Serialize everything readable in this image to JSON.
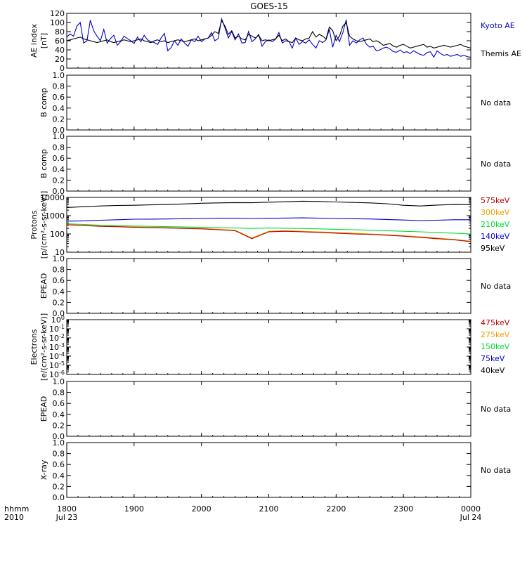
{
  "title": "GOES-15",
  "time_axis": {
    "corner_top": "hhmm",
    "corner_bottom": "2010",
    "ticks": [
      {
        "label": "1800",
        "date": "Jul 23",
        "hour": 18
      },
      {
        "label": "1900",
        "date": "",
        "hour": 19
      },
      {
        "label": "2000",
        "date": "",
        "hour": 20
      },
      {
        "label": "2100",
        "date": "",
        "hour": 21
      },
      {
        "label": "2200",
        "date": "",
        "hour": 22
      },
      {
        "label": "2300",
        "date": "",
        "hour": 23
      },
      {
        "label": "0000",
        "date": "Jul 24",
        "hour": 24
      }
    ],
    "range_hours": [
      18,
      24
    ]
  },
  "colors": {
    "black": "#000000",
    "blue": "#0000cc",
    "green": "#00dd33",
    "orange": "#eea000",
    "red": "#bb0000"
  },
  "no_data_label": "No data",
  "chart_data": [
    {
      "type": "line",
      "ylabel_lines": [
        "AE index",
        "[nT]"
      ],
      "ylim": [
        0,
        120
      ],
      "y_ticks": [
        0,
        20,
        40,
        60,
        80,
        100,
        120
      ],
      "scale": "linear",
      "legend": [
        {
          "text": "Kyoto AE",
          "color": "#0000cc"
        },
        {
          "text": "Themis AE",
          "color": "#000000"
        }
      ],
      "series": [
        {
          "name": "Kyoto AE",
          "color": "#0000cc",
          "x": [
            18.0,
            18.05,
            18.1,
            18.15,
            18.2,
            18.25,
            18.3,
            18.35,
            18.4,
            18.45,
            18.5,
            18.55,
            18.6,
            18.65,
            18.7,
            18.75,
            18.8,
            18.85,
            18.9,
            18.95,
            19.0,
            19.05,
            19.1,
            19.15,
            19.2,
            19.25,
            19.3,
            19.35,
            19.4,
            19.45,
            19.5,
            19.55,
            19.6,
            19.65,
            19.7,
            19.75,
            19.8,
            19.85,
            19.9,
            19.95,
            20.0,
            20.05,
            20.1,
            20.15,
            20.2,
            20.25,
            20.3,
            20.35,
            20.4,
            20.45,
            20.5,
            20.55,
            20.6,
            20.65,
            20.7,
            20.75,
            20.8,
            20.85,
            20.9,
            20.95,
            21.0,
            21.05,
            21.1,
            21.15,
            21.2,
            21.25,
            21.3,
            21.35,
            21.4,
            21.45,
            21.5,
            21.55,
            21.6,
            21.65,
            21.7,
            21.75,
            21.8,
            21.85,
            21.9,
            21.95,
            22.0,
            22.05,
            22.1,
            22.15,
            22.2,
            22.25,
            22.3,
            22.35,
            22.4,
            22.45,
            22.5,
            22.55,
            22.6,
            22.65,
            22.7,
            22.75,
            22.8,
            22.85,
            22.9,
            22.95,
            23.0,
            23.05,
            23.1,
            23.15,
            23.2,
            23.25,
            23.3,
            23.35,
            23.4,
            23.45,
            23.5,
            23.55,
            23.6,
            23.65,
            23.7,
            23.75,
            23.8,
            23.85,
            23.9,
            23.95,
            24.0
          ],
          "y": [
            68,
            75,
            70,
            92,
            100,
            55,
            60,
            105,
            82,
            70,
            60,
            85,
            55,
            65,
            72,
            50,
            58,
            70,
            65,
            60,
            54,
            68,
            58,
            72,
            62,
            58,
            56,
            52,
            66,
            76,
            38,
            45,
            60,
            50,
            64,
            55,
            48,
            62,
            58,
            70,
            58,
            64,
            66,
            78,
            60,
            65,
            108,
            88,
            66,
            80,
            62,
            75,
            55,
            56,
            80,
            58,
            64,
            74,
            48,
            58,
            62,
            58,
            63,
            78,
            55,
            60,
            58,
            44,
            66,
            52,
            58,
            55,
            62,
            52,
            44,
            60,
            56,
            62,
            85,
            46,
            72,
            58,
            78,
            106,
            50,
            60,
            55,
            62,
            66,
            52,
            46,
            48,
            38,
            40,
            44,
            46,
            42,
            36,
            35,
            40,
            34,
            36,
            32,
            38,
            34,
            30,
            28,
            34,
            36,
            24,
            38,
            32,
            28,
            30,
            26,
            28,
            30,
            26,
            28,
            25,
            24
          ]
        },
        {
          "name": "Themis AE",
          "color": "#000000",
          "x": [
            18.0,
            18.05,
            18.1,
            18.15,
            18.2,
            18.25,
            18.3,
            18.35,
            18.4,
            18.45,
            18.5,
            18.55,
            18.6,
            18.65,
            18.7,
            18.75,
            18.8,
            18.85,
            18.9,
            18.95,
            19.0,
            19.05,
            19.1,
            19.15,
            19.2,
            19.25,
            19.3,
            19.35,
            19.4,
            19.45,
            19.5,
            19.55,
            19.6,
            19.65,
            19.7,
            19.75,
            19.8,
            19.85,
            19.9,
            19.95,
            20.0,
            20.05,
            20.1,
            20.15,
            20.2,
            20.25,
            20.3,
            20.35,
            20.4,
            20.45,
            20.5,
            20.55,
            20.6,
            20.65,
            20.7,
            20.75,
            20.8,
            20.85,
            20.9,
            20.95,
            21.0,
            21.05,
            21.1,
            21.15,
            21.2,
            21.25,
            21.3,
            21.35,
            21.4,
            21.45,
            21.5,
            21.55,
            21.6,
            21.65,
            21.7,
            21.75,
            21.8,
            21.85,
            21.9,
            21.95,
            22.0,
            22.05,
            22.1,
            22.15,
            22.2,
            22.25,
            22.3,
            22.35,
            22.4,
            22.45,
            22.5,
            22.55,
            22.6,
            22.65,
            22.7,
            22.75,
            22.8,
            22.85,
            22.9,
            22.95,
            23.0,
            23.05,
            23.1,
            23.15,
            23.2,
            23.25,
            23.3,
            23.35,
            23.4,
            23.45,
            23.5,
            23.55,
            23.6,
            23.65,
            23.7,
            23.75,
            23.8,
            23.85,
            23.9,
            23.95,
            24.0
          ],
          "y": [
            60,
            62,
            64,
            66,
            68,
            64,
            62,
            60,
            58,
            56,
            58,
            60,
            62,
            58,
            56,
            58,
            60,
            62,
            60,
            58,
            60,
            62,
            64,
            60,
            58,
            56,
            60,
            62,
            58,
            60,
            56,
            58,
            60,
            62,
            60,
            58,
            60,
            62,
            64,
            60,
            62,
            64,
            66,
            72,
            80,
            76,
            104,
            92,
            74,
            82,
            66,
            70,
            64,
            62,
            74,
            70,
            66,
            72,
            60,
            62,
            60,
            62,
            64,
            72,
            60,
            64,
            58,
            56,
            66,
            62,
            60,
            64,
            66,
            80,
            68,
            74,
            70,
            64,
            90,
            82,
            60,
            70,
            92,
            100,
            70,
            64,
            60,
            58,
            60,
            62,
            64,
            58,
            60,
            56,
            50,
            52,
            54,
            48,
            46,
            50,
            52,
            48,
            44,
            46,
            48,
            50,
            52,
            46,
            48,
            44,
            46,
            48,
            50,
            48,
            46,
            48,
            50,
            52,
            48,
            46,
            44
          ]
        }
      ]
    },
    {
      "type": "line",
      "ylabel_lines": [
        "B comp"
      ],
      "ylim": [
        0,
        1
      ],
      "y_ticks": [
        0,
        0.2,
        0.4,
        0.6,
        0.8,
        1.0
      ],
      "y_tick_labels": [
        "0.0",
        "0.2",
        "0.4",
        "0.6",
        "0.8",
        "1.0"
      ],
      "scale": "linear",
      "note": "No data",
      "series": []
    },
    {
      "type": "line",
      "ylabel_lines": [
        "B comp"
      ],
      "ylim": [
        0,
        1
      ],
      "y_ticks": [
        0,
        0.2,
        0.4,
        0.6,
        0.8,
        1.0
      ],
      "y_tick_labels": [
        "0.0",
        "0.2",
        "0.4",
        "0.6",
        "0.8",
        "1.0"
      ],
      "scale": "linear",
      "note": "No data",
      "series": []
    },
    {
      "type": "line",
      "ylabel_lines": [
        "Protons",
        "[p/(cm²-s-sr-keV)]"
      ],
      "ylim": [
        10,
        10000
      ],
      "y_ticks": [
        10,
        100,
        1000,
        10000
      ],
      "y_tick_labels": [
        "10",
        "100",
        "1000",
        "10000"
      ],
      "scale": "log",
      "legend": [
        {
          "text": "575keV",
          "color": "#bb0000"
        },
        {
          "text": "300keV",
          "color": "#eea000"
        },
        {
          "text": "210keV",
          "color": "#00dd33"
        },
        {
          "text": "140keV",
          "color": "#0000cc"
        },
        {
          "text": "95keV",
          "color": "#000000"
        }
      ],
      "series": [
        {
          "name": "95keV",
          "color": "#000000",
          "x": [
            18.0,
            18.25,
            18.5,
            18.75,
            19.0,
            19.25,
            19.5,
            19.75,
            20.0,
            20.25,
            20.5,
            20.75,
            21.0,
            21.25,
            21.5,
            21.75,
            22.0,
            22.25,
            22.5,
            22.75,
            23.0,
            23.25,
            23.5,
            23.75,
            24.0
          ],
          "y": [
            2800,
            3100,
            3400,
            3600,
            3700,
            3900,
            4100,
            4400,
            4800,
            5000,
            5200,
            5100,
            5500,
            5800,
            6200,
            6000,
            5600,
            5300,
            5000,
            4500,
            3700,
            3400,
            3800,
            4100,
            4000
          ]
        },
        {
          "name": "140keV",
          "color": "#0000cc",
          "x": [
            18.0,
            18.25,
            18.5,
            18.75,
            19.0,
            19.25,
            19.5,
            19.75,
            20.0,
            20.25,
            20.5,
            20.75,
            21.0,
            21.25,
            21.5,
            21.75,
            22.0,
            22.25,
            22.5,
            22.75,
            23.0,
            23.25,
            23.5,
            23.75,
            24.0
          ],
          "y": [
            500,
            520,
            560,
            600,
            640,
            650,
            660,
            680,
            700,
            720,
            730,
            700,
            720,
            740,
            760,
            730,
            700,
            680,
            660,
            620,
            580,
            540,
            560,
            600,
            600
          ]
        },
        {
          "name": "210keV",
          "color": "#00dd33",
          "x": [
            18.0,
            18.25,
            18.5,
            18.75,
            19.0,
            19.25,
            19.5,
            19.75,
            20.0,
            20.25,
            20.5,
            20.75,
            21.0,
            21.25,
            21.5,
            21.75,
            22.0,
            22.25,
            22.5,
            22.75,
            23.0,
            23.25,
            23.5,
            23.75,
            24.0
          ],
          "y": [
            360,
            330,
            300,
            290,
            270,
            260,
            250,
            240,
            230,
            220,
            210,
            200,
            210,
            205,
            200,
            190,
            180,
            170,
            160,
            150,
            140,
            130,
            120,
            110,
            100
          ]
        },
        {
          "name": "300keV",
          "color": "#eea000",
          "x": [
            18.0,
            18.25,
            18.5,
            18.75,
            19.0,
            19.25,
            19.5,
            19.75,
            20.0,
            20.25,
            20.5,
            20.75,
            21.0,
            21.25,
            21.5,
            21.75,
            22.0,
            22.25,
            22.5,
            22.75,
            23.0,
            23.25,
            23.5,
            23.75,
            24.0
          ],
          "y": [
            330,
            300,
            270,
            260,
            240,
            230,
            220,
            210,
            200,
            180,
            160,
            60,
            140,
            150,
            140,
            130,
            120,
            110,
            100,
            90,
            80,
            70,
            60,
            50,
            40
          ]
        },
        {
          "name": "575keV",
          "color": "#bb0000",
          "x": [
            18.0,
            18.25,
            18.5,
            18.75,
            19.0,
            19.25,
            19.5,
            19.75,
            20.0,
            20.25,
            20.5,
            20.75,
            21.0,
            21.25,
            21.5,
            21.75,
            22.0,
            22.25,
            22.5,
            22.75,
            23.0,
            23.25,
            23.5,
            23.75,
            24.0
          ],
          "y": [
            320,
            290,
            260,
            250,
            230,
            220,
            210,
            200,
            190,
            170,
            150,
            55,
            130,
            140,
            130,
            120,
            110,
            100,
            95,
            85,
            75,
            65,
            55,
            48,
            38
          ]
        }
      ]
    },
    {
      "type": "line",
      "ylabel_lines": [
        "EPEAD"
      ],
      "ylim": [
        0,
        1
      ],
      "y_ticks": [
        0,
        0.2,
        0.4,
        0.6,
        0.8,
        1.0
      ],
      "y_tick_labels": [
        "0.0",
        "0.2",
        "0.4",
        "0.6",
        "0.8",
        "1.0"
      ],
      "scale": "linear",
      "note": "No data",
      "series": []
    },
    {
      "type": "line",
      "ylabel_lines": [
        "Electrons",
        "[e/(cm²-s-sr-keV)]"
      ],
      "ylim": [
        1e-06,
        1
      ],
      "y_ticks": [
        1e-06,
        1e-05,
        0.0001,
        0.001,
        0.01,
        0.1,
        1
      ],
      "y_tick_labels": [
        {
          "base": "10",
          "exp": "-6"
        },
        {
          "base": "10",
          "exp": "-5"
        },
        {
          "base": "10",
          "exp": "-4"
        },
        {
          "base": "10",
          "exp": "-3"
        },
        {
          "base": "10",
          "exp": "-2"
        },
        {
          "base": "10",
          "exp": "-1"
        },
        {
          "base": "10",
          "exp": "0"
        }
      ],
      "scale": "log",
      "legend": [
        {
          "text": "475keV",
          "color": "#bb0000"
        },
        {
          "text": "275keV",
          "color": "#eea000"
        },
        {
          "text": "150keV",
          "color": "#00dd33"
        },
        {
          "text": "75keV",
          "color": "#0000cc"
        },
        {
          "text": "40keV",
          "color": "#000000"
        }
      ],
      "series": []
    },
    {
      "type": "line",
      "ylabel_lines": [
        "EPEAD"
      ],
      "ylim": [
        0,
        1
      ],
      "y_ticks": [
        0,
        0.2,
        0.4,
        0.6,
        0.8,
        1.0
      ],
      "y_tick_labels": [
        "0.0",
        "0.2",
        "0.4",
        "0.6",
        "0.8",
        "1.0"
      ],
      "scale": "linear",
      "note": "No data",
      "series": []
    },
    {
      "type": "line",
      "ylabel_lines": [
        "X-ray"
      ],
      "ylim": [
        0,
        1
      ],
      "y_ticks": [
        0,
        0.2,
        0.4,
        0.6,
        0.8,
        1.0
      ],
      "y_tick_labels": [
        "0.0",
        "0.2",
        "0.4",
        "0.6",
        "0.8",
        "1.0"
      ],
      "scale": "linear",
      "note": "No data",
      "series": []
    }
  ]
}
